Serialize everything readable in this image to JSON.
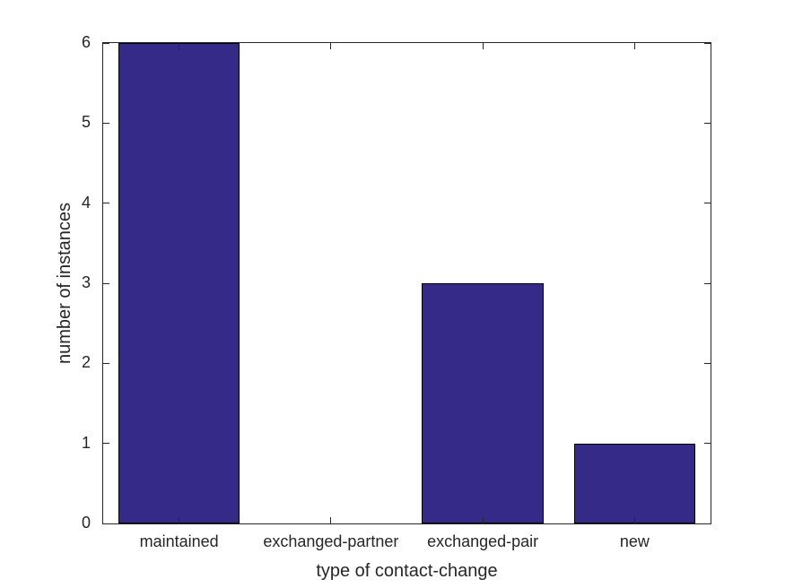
{
  "chart_data": {
    "type": "bar",
    "categories": [
      "maintained",
      "exchanged-partner",
      "exchanged-pair",
      "new"
    ],
    "values": [
      6,
      0,
      3,
      1
    ],
    "xlabel": "type of contact-change",
    "ylabel": "number of instances",
    "ylim": [
      0,
      6
    ],
    "yticks": [
      0,
      1,
      2,
      3,
      4,
      5,
      6
    ],
    "bar_width_fraction": 0.8,
    "grid": false,
    "bar_color": "#352A87",
    "bar_edge_color": "#000000",
    "axis_color": "#262626",
    "background": "#FFFFFF"
  }
}
